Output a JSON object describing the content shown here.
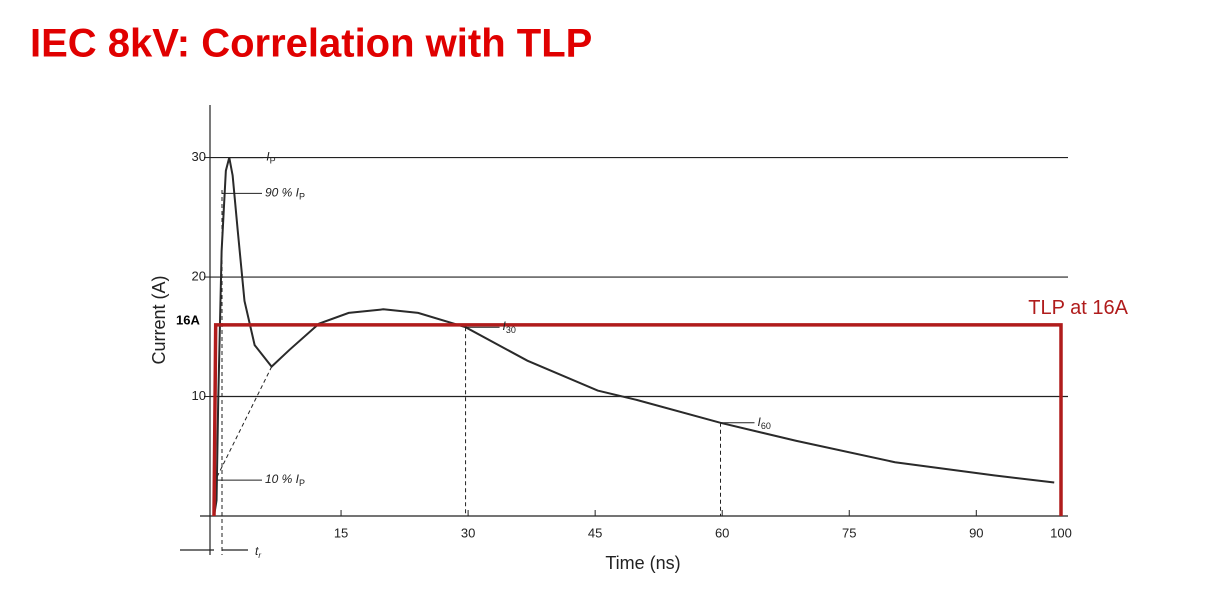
{
  "chart_data": {
    "type": "line",
    "title": "IEC 8kV: Correlation with TLP",
    "x_label": "Time (ns)",
    "y_label": "Current (A)",
    "xlim": [
      0,
      100
    ],
    "ylim": [
      0,
      34.4
    ],
    "xticks": [
      15,
      30,
      45,
      60,
      75,
      90,
      100
    ],
    "yticks": [
      10,
      20,
      30
    ],
    "grid": true,
    "series": [
      {
        "color": "#2a2a2a",
        "x": [
          0,
          0.3,
          0.5,
          0.9,
          1.4,
          1.8,
          2.2,
          2.8,
          3.6,
          4.8,
          6.8,
          8.9,
          12.4,
          15.9,
          20,
          24.1,
          29.7,
          37,
          45.3,
          50,
          59.8,
          68.7,
          80.4,
          92.1,
          99.2
        ],
        "values": [
          0,
          1.3,
          9.7,
          22.2,
          28.9,
          30,
          28.5,
          23.9,
          18,
          14.3,
          12.5,
          13.9,
          16.1,
          17,
          17.3,
          17,
          15.8,
          13,
          10.5,
          9.7,
          7.8,
          6.3,
          4.5,
          3.4,
          2.8
        ]
      },
      {
        "color": "#b01c1c",
        "x": [
          0,
          0.2,
          100,
          100
        ],
        "values": [
          0,
          16,
          16,
          0
        ]
      }
    ],
    "tlp_label": "TLP at 16A",
    "tlp_level_label": "16A",
    "annotations": [
      {
        "main": "I",
        "sub": "P",
        "x": 1.8,
        "y": 30
      },
      {
        "main": "90 % I",
        "sub": "P",
        "x": 0.9,
        "y": 27
      },
      {
        "main": "10 % I",
        "sub": "P",
        "x": 0.4,
        "y": 3
      },
      {
        "main": "I",
        "sub": "30",
        "x": 29.7,
        "y": 15.8
      },
      {
        "main": "I",
        "sub": "60",
        "x": 59.8,
        "y": 7.8
      }
    ],
    "rise_time_label": {
      "main": "t",
      "sub": "r"
    }
  }
}
